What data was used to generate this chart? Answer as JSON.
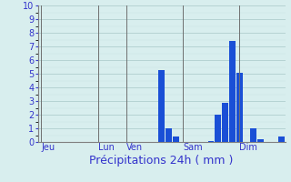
{
  "title": "",
  "xlabel": "Précipitations 24h ( mm )",
  "ylabel": "",
  "background_color": "#d8eeee",
  "bar_color": "#1a4fd6",
  "grid_color_major": "#a8c8c8",
  "grid_color_minor": "#c8e0e0",
  "axis_label_color": "#3333cc",
  "tick_label_color": "#3333cc",
  "spine_color": "#808080",
  "ylim": [
    0,
    10
  ],
  "yticks": [
    0,
    1,
    2,
    3,
    4,
    5,
    6,
    7,
    8,
    9,
    10
  ],
  "day_labels": [
    "Jeu",
    "Lun",
    "Ven",
    "Sam",
    "Dim"
  ],
  "vline_positions": [
    0.5,
    8.5,
    12.5,
    20.5,
    28.5
  ],
  "vline_color": "#707070",
  "num_bars": 35,
  "bar_values": [
    0,
    0,
    0,
    0,
    0,
    0,
    0,
    0,
    0,
    0,
    0,
    0,
    0,
    0,
    0,
    0,
    0,
    5.3,
    1.0,
    0.4,
    0,
    0,
    0,
    0,
    0.1,
    2.0,
    2.9,
    7.4,
    5.1,
    0,
    1.0,
    0.2,
    0,
    0,
    0.4
  ],
  "bar_width": 0.9,
  "figsize": [
    3.2,
    2.0
  ],
  "dpi": 100,
  "xlabel_fontsize": 9,
  "tick_fontsize": 7,
  "vline_lw": 0.7
}
